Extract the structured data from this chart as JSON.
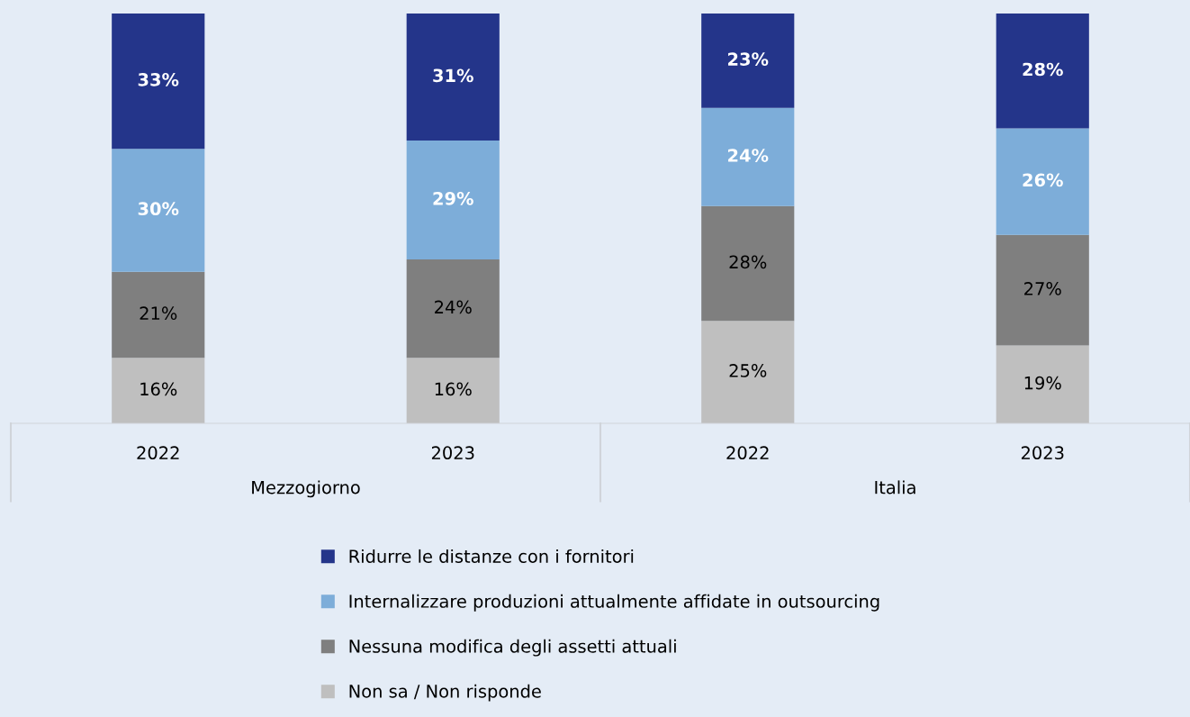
{
  "chart_data": {
    "type": "bar",
    "stacked": true,
    "categories": [
      "2022",
      "2023",
      "2022",
      "2023"
    ],
    "series": [
      {
        "name": "Non sa / Non risponde",
        "color": "#bfbfbf",
        "values": [
          16,
          16,
          25,
          19
        ],
        "value_labels": [
          "16%",
          "16%",
          "25%",
          "19%"
        ]
      },
      {
        "name": "Nessuna modifica degli assetti attuali",
        "color": "#7f7f7f",
        "values": [
          21,
          24,
          28,
          27
        ],
        "value_labels": [
          "21%",
          "24%",
          "28%",
          "27%"
        ]
      },
      {
        "name": "Internalizzare produzioni attualmente affidate in outsourcing",
        "color": "#7dadd9",
        "values": [
          30,
          29,
          24,
          26
        ],
        "value_labels": [
          "30%",
          "29%",
          "24%",
          "26%"
        ]
      },
      {
        "name": "Ridurre le distanze con i fornitori",
        "color": "#24358a",
        "values": [
          33,
          31,
          23,
          28
        ],
        "value_labels": [
          "33%",
          "31%",
          "23%",
          "28%"
        ]
      }
    ],
    "annotations": [
      "Mezzogiorno",
      "Italia"
    ],
    "legend": "bottom",
    "grid": false
  }
}
